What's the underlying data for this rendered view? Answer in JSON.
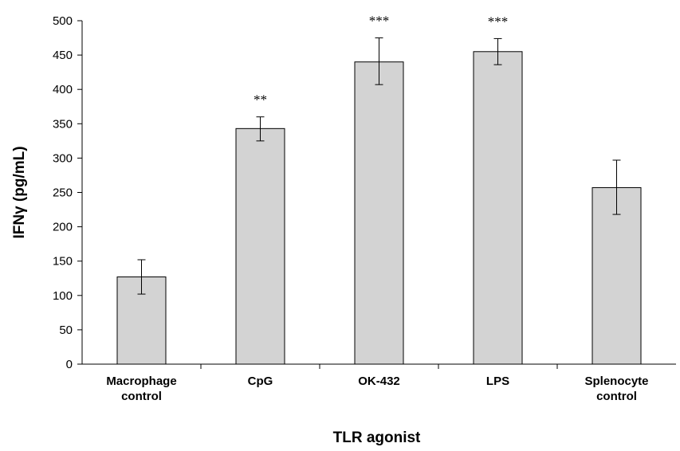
{
  "chart_data": {
    "type": "bar",
    "title": "",
    "xlabel": "TLR agonist",
    "ylabel": "IFNγ (pg/mL)",
    "ylim": [
      0,
      500
    ],
    "yticks": [
      "0",
      "50",
      "100",
      "150",
      "200",
      "250",
      "300",
      "350",
      "400",
      "450",
      "500"
    ],
    "categories": [
      [
        "Macrophage",
        "control"
      ],
      [
        "CpG"
      ],
      [
        "OK-432"
      ],
      [
        "LPS"
      ],
      [
        "Splenocyte",
        "control"
      ]
    ],
    "values": [
      127,
      343,
      440,
      455,
      257
    ],
    "error_low": [
      102,
      325,
      407,
      436,
      218
    ],
    "error_high": [
      152,
      360,
      475,
      474,
      297
    ],
    "significance": [
      "",
      "**",
      "***",
      "***",
      ""
    ],
    "grid": false,
    "bar_color": "#d3d3d3",
    "bar_edge_color": "#000000"
  }
}
